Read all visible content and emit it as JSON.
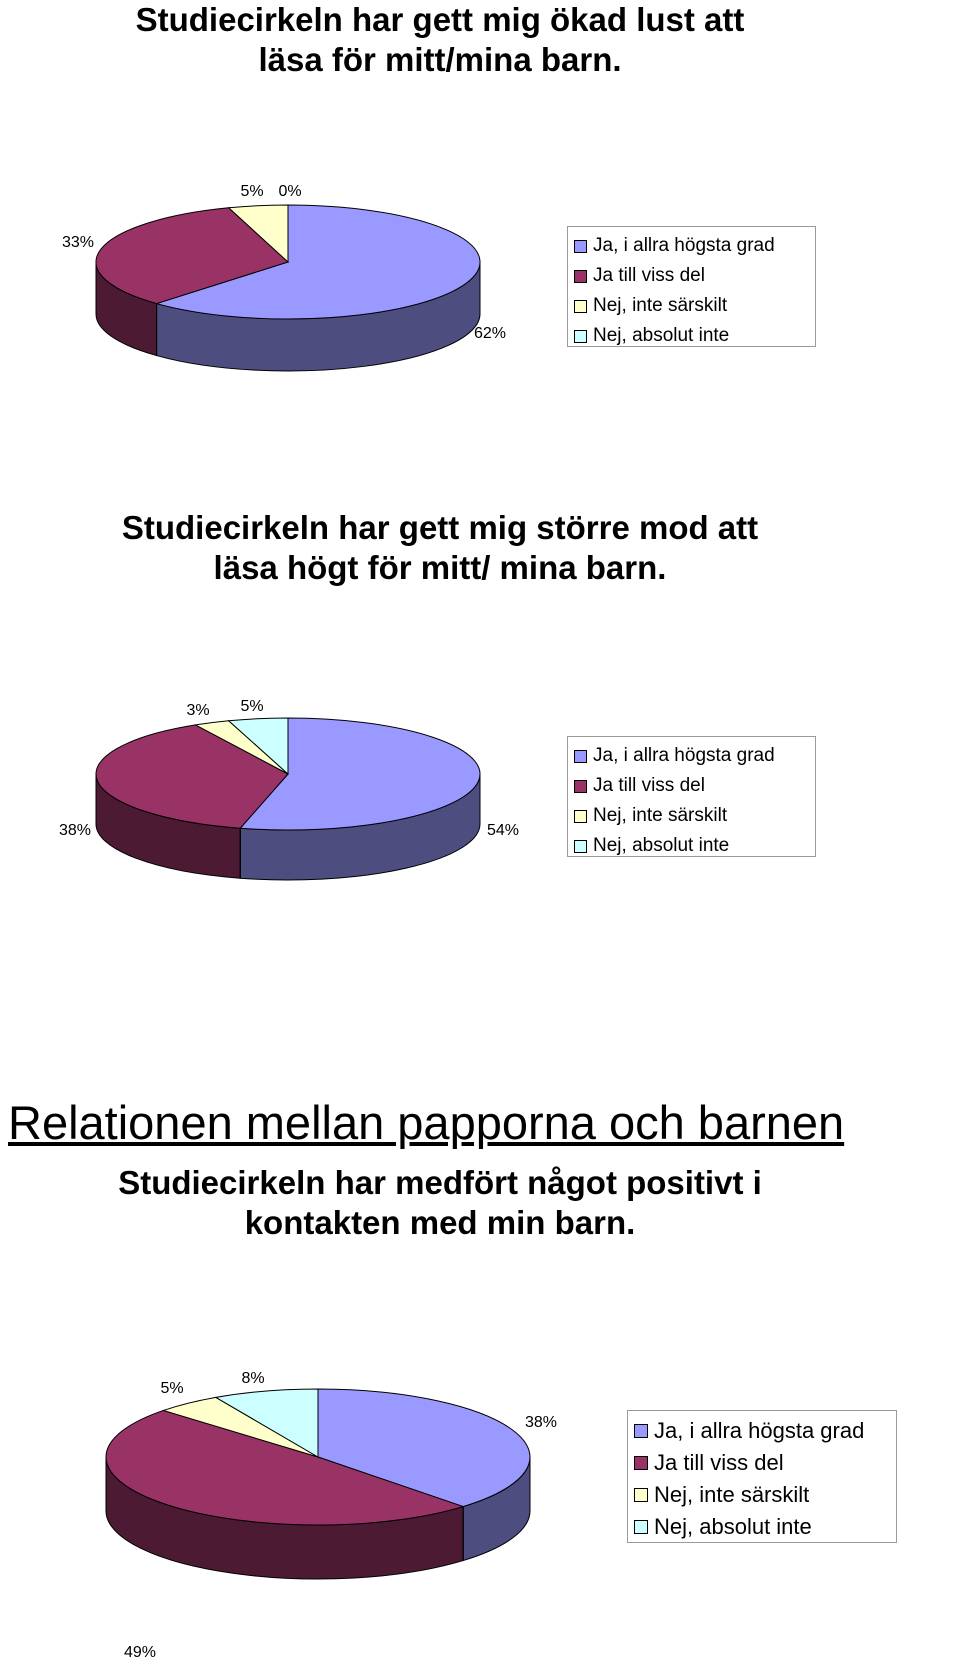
{
  "section_heading": "Relationen mellan papporna och barnen",
  "chart_data": [
    {
      "type": "pie",
      "title_lines": [
        "Studiecirkeln har gett mig ökad lust att",
        "läsa för mitt/mina barn."
      ],
      "categories": [
        "Ja, i allra högsta grad",
        "Ja till viss del",
        "Nej, inte särskilt",
        "Nej, absolut inte"
      ],
      "values": [
        62,
        33,
        5,
        0
      ],
      "labels": [
        "62%",
        "33%",
        "5%",
        "0%"
      ],
      "colors": [
        "#9999ff",
        "#993366",
        "#ffffcc",
        "#ccffff"
      ],
      "legend_position": "right",
      "style": "3d"
    },
    {
      "type": "pie",
      "title_lines": [
        "Studiecirkeln har gett mig större mod att",
        "läsa högt för mitt/ mina barn."
      ],
      "categories": [
        "Ja, i allra högsta grad",
        "Ja till viss del",
        "Nej, inte särskilt",
        "Nej, absolut inte"
      ],
      "values": [
        54,
        38,
        3,
        5
      ],
      "labels": [
        "54%",
        "38%",
        "3%",
        "5%"
      ],
      "colors": [
        "#9999ff",
        "#993366",
        "#ffffcc",
        "#ccffff"
      ],
      "legend_position": "right",
      "style": "3d"
    },
    {
      "type": "pie",
      "title_lines": [
        "Studiecirkeln har medfört något positivt i",
        "kontakten med min barn."
      ],
      "categories": [
        "Ja, i allra högsta grad",
        "Ja till viss del",
        "Nej, inte särskilt",
        "Nej, absolut inte"
      ],
      "values": [
        38,
        49,
        5,
        8
      ],
      "labels": [
        "38%",
        "49%",
        "5%",
        "8%"
      ],
      "colors": [
        "#9999ff",
        "#993366",
        "#ffffcc",
        "#ccffff"
      ],
      "legend_position": "right",
      "style": "3d"
    }
  ]
}
